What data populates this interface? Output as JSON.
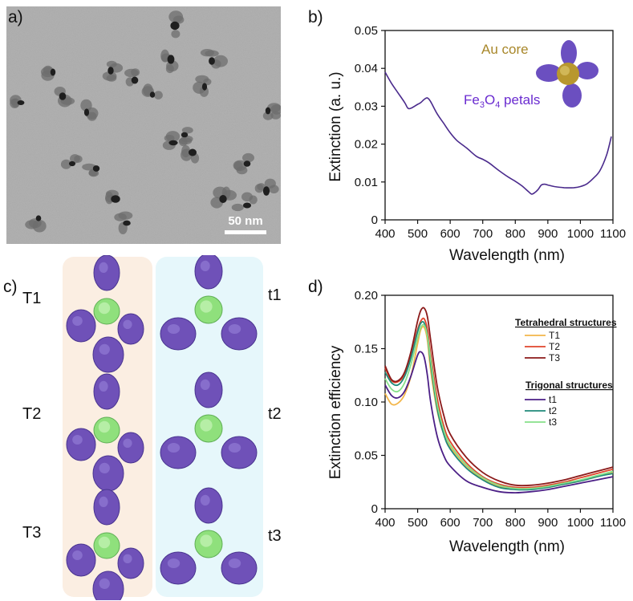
{
  "panels": {
    "a": "a)",
    "b": "b)",
    "c": "c)",
    "d": "d)"
  },
  "tem": {
    "scale_bar_label": "50 nm"
  },
  "structures": {
    "tetrahedral_labels": [
      "T1",
      "T2",
      "T3"
    ],
    "trigonal_labels": [
      "t1",
      "t2",
      "t3"
    ],
    "colors": {
      "tetra_bg": "#fbeee2",
      "trig_bg": "#e6f7fb",
      "petal": "#6f51b8",
      "core": "#8fe07c"
    }
  },
  "chart_data": [
    {
      "type": "line",
      "xlabel": "Wavelength (nm)",
      "ylabel": "Extinction (a. u.)",
      "xlim": [
        400,
        1100
      ],
      "ylim": [
        0,
        0.05
      ],
      "xticks": [
        400,
        500,
        600,
        700,
        800,
        900,
        1000,
        1100
      ],
      "yticks": [
        0,
        0.01,
        0.02,
        0.03,
        0.04,
        0.05
      ],
      "ytick_labels": [
        "0",
        "0.01",
        "0.02",
        "0.03",
        "0.04",
        "0.05"
      ],
      "annotations": {
        "core_label": "Au core",
        "petal_label_main": "Fe",
        "petal_sub1": "3",
        "petal_mid": "O",
        "petal_sub2": "4",
        "petal_tail": " petals"
      },
      "colors": {
        "line": "#4a2a8c",
        "core_text": "#a8872a",
        "petal_text": "#6a2bd0"
      },
      "series": [
        {
          "x": [
            400,
            420,
            440,
            460,
            470,
            480,
            500,
            510,
            520,
            530,
            540,
            560,
            580,
            600,
            620,
            650,
            680,
            700,
            720,
            750,
            780,
            800,
            820,
            840,
            850,
            860,
            870,
            880,
            890,
            900,
            920,
            950,
            980,
            1000,
            1020,
            1040,
            1060,
            1080,
            1095
          ],
          "y": [
            0.039,
            0.036,
            0.0335,
            0.031,
            0.0295,
            0.0295,
            0.0305,
            0.031,
            0.0318,
            0.0322,
            0.0312,
            0.028,
            0.0255,
            0.023,
            0.021,
            0.019,
            0.0168,
            0.016,
            0.015,
            0.013,
            0.0112,
            0.0102,
            0.009,
            0.0075,
            0.0068,
            0.0072,
            0.008,
            0.0092,
            0.0094,
            0.0092,
            0.0088,
            0.0085,
            0.0085,
            0.0088,
            0.0095,
            0.011,
            0.013,
            0.017,
            0.022
          ]
        }
      ]
    },
    {
      "type": "line",
      "xlabel": "Wavelength (nm)",
      "ylabel": "Extinction efficiency",
      "xlim": [
        400,
        1100
      ],
      "ylim": [
        0,
        0.2
      ],
      "xticks": [
        400,
        500,
        600,
        700,
        800,
        900,
        1000,
        1100
      ],
      "yticks": [
        0,
        0.05,
        0.1,
        0.15,
        0.2
      ],
      "ytick_labels": [
        "0",
        "0.05",
        "0.10",
        "0.15",
        "0.20"
      ],
      "legend": {
        "group1_title": "Tetrahedral structures",
        "group2_title": "Trigonal structures",
        "placement": "top-right"
      },
      "x": [
        400,
        420,
        440,
        460,
        480,
        500,
        510,
        520,
        530,
        540,
        560,
        580,
        600,
        650,
        700,
        750,
        800,
        850,
        900,
        950,
        1000,
        1050,
        1100
      ],
      "series": [
        {
          "name": "T1",
          "group": 1,
          "color": "#f3b64a",
          "values": [
            0.108,
            0.098,
            0.099,
            0.107,
            0.125,
            0.155,
            0.168,
            0.17,
            0.158,
            0.13,
            0.092,
            0.07,
            0.058,
            0.04,
            0.028,
            0.021,
            0.019,
            0.019,
            0.02,
            0.023,
            0.026,
            0.03,
            0.034
          ]
        },
        {
          "name": "T2",
          "group": 1,
          "color": "#e0452b",
          "values": [
            0.132,
            0.12,
            0.119,
            0.126,
            0.145,
            0.168,
            0.176,
            0.178,
            0.168,
            0.145,
            0.104,
            0.078,
            0.063,
            0.043,
            0.03,
            0.023,
            0.02,
            0.02,
            0.022,
            0.025,
            0.029,
            0.033,
            0.037
          ]
        },
        {
          "name": "T3",
          "group": 1,
          "color": "#8b1a1a",
          "values": [
            0.134,
            0.121,
            0.12,
            0.128,
            0.148,
            0.176,
            0.186,
            0.188,
            0.18,
            0.158,
            0.115,
            0.088,
            0.07,
            0.048,
            0.034,
            0.026,
            0.022,
            0.022,
            0.024,
            0.027,
            0.031,
            0.035,
            0.039
          ]
        },
        {
          "name": "t1",
          "group": 2,
          "color": "#4b1f86",
          "values": [
            0.116,
            0.106,
            0.104,
            0.11,
            0.125,
            0.144,
            0.147,
            0.142,
            0.125,
            0.1,
            0.068,
            0.05,
            0.04,
            0.026,
            0.02,
            0.016,
            0.015,
            0.016,
            0.018,
            0.021,
            0.024,
            0.027,
            0.03
          ]
        },
        {
          "name": "t2",
          "group": 2,
          "color": "#1f8a7a",
          "values": [
            0.128,
            0.118,
            0.116,
            0.124,
            0.142,
            0.166,
            0.174,
            0.174,
            0.162,
            0.136,
            0.094,
            0.07,
            0.056,
            0.038,
            0.027,
            0.02,
            0.018,
            0.018,
            0.02,
            0.023,
            0.026,
            0.03,
            0.033
          ]
        },
        {
          "name": "t3",
          "group": 2,
          "color": "#86e08a",
          "values": [
            0.122,
            0.112,
            0.11,
            0.118,
            0.136,
            0.16,
            0.17,
            0.172,
            0.162,
            0.14,
            0.098,
            0.074,
            0.06,
            0.041,
            0.029,
            0.022,
            0.019,
            0.019,
            0.021,
            0.024,
            0.027,
            0.031,
            0.035
          ]
        }
      ]
    }
  ]
}
